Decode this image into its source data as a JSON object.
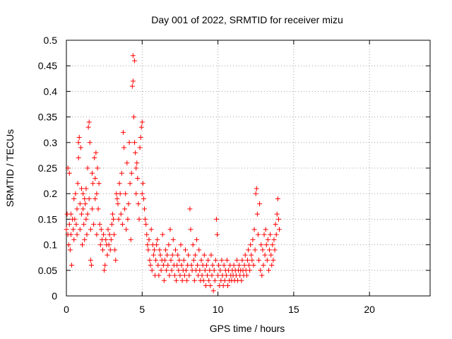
{
  "chart_data": {
    "type": "scatter",
    "title": "Day 001 of 2022, SRMTID for receiver mizu",
    "xlabel": "GPS time / hours",
    "ylabel": "SRMTID / TECUs",
    "xlim": [
      0,
      24
    ],
    "ylim": [
      0,
      0.5
    ],
    "xticks": [
      0,
      5,
      10,
      15,
      20
    ],
    "xtick_labels": [
      "0",
      "5",
      "10",
      "15",
      "20"
    ],
    "yticks": [
      0,
      0.05,
      0.1,
      0.15,
      0.2,
      0.25,
      0.3,
      0.35,
      0.4,
      0.45,
      0.5
    ],
    "ytick_labels": [
      "0",
      "0.05",
      "0.1",
      "0.15",
      "0.2",
      "0.25",
      "0.3",
      "0.35",
      "0.4",
      "0.45",
      "0.5"
    ],
    "grid": true,
    "marker": "+",
    "color": "#ff0000",
    "series": [
      {
        "name": "SRMTID",
        "points": [
          [
            0.0,
            0.13
          ],
          [
            0.05,
            0.16
          ],
          [
            0.1,
            0.25
          ],
          [
            0.1,
            0.12
          ],
          [
            0.15,
            0.1
          ],
          [
            0.2,
            0.14
          ],
          [
            0.2,
            0.24
          ],
          [
            0.25,
            0.09
          ],
          [
            0.3,
            0.12
          ],
          [
            0.3,
            0.16
          ],
          [
            0.35,
            0.06
          ],
          [
            0.4,
            0.15
          ],
          [
            0.45,
            0.13
          ],
          [
            0.5,
            0.11
          ],
          [
            0.5,
            0.19
          ],
          [
            0.55,
            0.15
          ],
          [
            0.6,
            0.2
          ],
          [
            0.65,
            0.14
          ],
          [
            0.7,
            0.17
          ],
          [
            0.7,
            0.12
          ],
          [
            0.75,
            0.22
          ],
          [
            0.8,
            0.27
          ],
          [
            0.8,
            0.3
          ],
          [
            0.85,
            0.31
          ],
          [
            0.9,
            0.18
          ],
          [
            0.9,
            0.13
          ],
          [
            0.95,
            0.29
          ],
          [
            1.0,
            0.21
          ],
          [
            1.0,
            0.16
          ],
          [
            1.05,
            0.1
          ],
          [
            1.1,
            0.2
          ],
          [
            1.1,
            0.17
          ],
          [
            1.15,
            0.14
          ],
          [
            1.2,
            0.19
          ],
          [
            1.2,
            0.11
          ],
          [
            1.25,
            0.18
          ],
          [
            1.3,
            0.15
          ],
          [
            1.3,
            0.21
          ],
          [
            1.35,
            0.12
          ],
          [
            1.4,
            0.25
          ],
          [
            1.4,
            0.16
          ],
          [
            1.45,
            0.33
          ],
          [
            1.5,
            0.34
          ],
          [
            1.5,
            0.19
          ],
          [
            1.55,
            0.3
          ],
          [
            1.6,
            0.13
          ],
          [
            1.6,
            0.07
          ],
          [
            1.65,
            0.06
          ],
          [
            1.7,
            0.24
          ],
          [
            1.7,
            0.17
          ],
          [
            1.75,
            0.22
          ],
          [
            1.8,
            0.14
          ],
          [
            1.85,
            0.27
          ],
          [
            1.9,
            0.23
          ],
          [
            1.9,
            0.19
          ],
          [
            1.95,
            0.28
          ],
          [
            2.0,
            0.2
          ],
          [
            2.0,
            0.12
          ],
          [
            2.05,
            0.25
          ],
          [
            2.1,
            0.17
          ],
          [
            2.15,
            0.22
          ],
          [
            2.2,
            0.14
          ],
          [
            2.25,
            0.1
          ],
          [
            2.3,
            0.13
          ],
          [
            2.35,
            0.11
          ],
          [
            2.4,
            0.09
          ],
          [
            2.45,
            0.12
          ],
          [
            2.5,
            0.05
          ],
          [
            2.55,
            0.06
          ],
          [
            2.6,
            0.11
          ],
          [
            2.65,
            0.1
          ],
          [
            2.7,
            0.08
          ],
          [
            2.75,
            0.13
          ],
          [
            2.8,
            0.1
          ],
          [
            2.85,
            0.12
          ],
          [
            2.9,
            0.09
          ],
          [
            2.95,
            0.11
          ],
          [
            3.0,
            0.14
          ],
          [
            3.05,
            0.16
          ],
          [
            3.1,
            0.15
          ],
          [
            3.15,
            0.12
          ],
          [
            3.2,
            0.09
          ],
          [
            3.25,
            0.07
          ],
          [
            3.3,
            0.2
          ],
          [
            3.35,
            0.19
          ],
          [
            3.4,
            0.18
          ],
          [
            3.45,
            0.15
          ],
          [
            3.5,
            0.22
          ],
          [
            3.55,
            0.2
          ],
          [
            3.6,
            0.16
          ],
          [
            3.65,
            0.24
          ],
          [
            3.7,
            0.14
          ],
          [
            3.75,
            0.32
          ],
          [
            3.8,
            0.29
          ],
          [
            3.85,
            0.17
          ],
          [
            3.9,
            0.2
          ],
          [
            3.95,
            0.13
          ],
          [
            4.0,
            0.26
          ],
          [
            4.05,
            0.15
          ],
          [
            4.1,
            0.18
          ],
          [
            4.15,
            0.3
          ],
          [
            4.2,
            0.22
          ],
          [
            4.25,
            0.11
          ],
          [
            4.3,
            0.24
          ],
          [
            4.35,
            0.41
          ],
          [
            4.4,
            0.47
          ],
          [
            4.4,
            0.42
          ],
          [
            4.45,
            0.35
          ],
          [
            4.5,
            0.46
          ],
          [
            4.5,
            0.3
          ],
          [
            4.55,
            0.28
          ],
          [
            4.6,
            0.25
          ],
          [
            4.6,
            0.2
          ],
          [
            4.65,
            0.26
          ],
          [
            4.7,
            0.23
          ],
          [
            4.75,
            0.18
          ],
          [
            4.8,
            0.15
          ],
          [
            4.85,
            0.29
          ],
          [
            4.9,
            0.31
          ],
          [
            4.95,
            0.33
          ],
          [
            5.0,
            0.34
          ],
          [
            5.0,
            0.2
          ],
          [
            5.05,
            0.22
          ],
          [
            5.1,
            0.19
          ],
          [
            5.15,
            0.17
          ],
          [
            5.2,
            0.15
          ],
          [
            5.25,
            0.14
          ],
          [
            5.3,
            0.12
          ],
          [
            5.35,
            0.1
          ],
          [
            5.4,
            0.09
          ],
          [
            5.45,
            0.11
          ],
          [
            5.5,
            0.07
          ],
          [
            5.55,
            0.06
          ],
          [
            5.6,
            0.13
          ],
          [
            5.65,
            0.05
          ],
          [
            5.7,
            0.1
          ],
          [
            5.75,
            0.08
          ],
          [
            5.8,
            0.09
          ],
          [
            5.85,
            0.04
          ],
          [
            5.9,
            0.07
          ],
          [
            5.95,
            0.1
          ],
          [
            6.0,
            0.11
          ],
          [
            6.05,
            0.06
          ],
          [
            6.1,
            0.04
          ],
          [
            6.15,
            0.09
          ],
          [
            6.2,
            0.08
          ],
          [
            6.25,
            0.05
          ],
          [
            6.3,
            0.07
          ],
          [
            6.35,
            0.12
          ],
          [
            6.4,
            0.06
          ],
          [
            6.45,
            0.03
          ],
          [
            6.5,
            0.07
          ],
          [
            6.55,
            0.09
          ],
          [
            6.6,
            0.05
          ],
          [
            6.65,
            0.08
          ],
          [
            6.7,
            0.06
          ],
          [
            6.75,
            0.1
          ],
          [
            6.8,
            0.04
          ],
          [
            6.85,
            0.13
          ],
          [
            6.9,
            0.07
          ],
          [
            6.95,
            0.05
          ],
          [
            7.0,
            0.08
          ],
          [
            7.05,
            0.11
          ],
          [
            7.1,
            0.06
          ],
          [
            7.15,
            0.04
          ],
          [
            7.2,
            0.09
          ],
          [
            7.25,
            0.03
          ],
          [
            7.3,
            0.06
          ],
          [
            7.35,
            0.08
          ],
          [
            7.4,
            0.05
          ],
          [
            7.45,
            0.07
          ],
          [
            7.5,
            0.04
          ],
          [
            7.55,
            0.1
          ],
          [
            7.6,
            0.06
          ],
          [
            7.65,
            0.03
          ],
          [
            7.7,
            0.05
          ],
          [
            7.75,
            0.07
          ],
          [
            7.8,
            0.04
          ],
          [
            7.85,
            0.09
          ],
          [
            7.9,
            0.05
          ],
          [
            7.95,
            0.03
          ],
          [
            8.0,
            0.06
          ],
          [
            8.05,
            0.08
          ],
          [
            8.1,
            0.04
          ],
          [
            8.15,
            0.17
          ],
          [
            8.2,
            0.13
          ],
          [
            8.25,
            0.06
          ],
          [
            8.3,
            0.05
          ],
          [
            8.35,
            0.1
          ],
          [
            8.4,
            0.07
          ],
          [
            8.45,
            0.03
          ],
          [
            8.5,
            0.08
          ],
          [
            8.55,
            0.05
          ],
          [
            8.6,
            0.11
          ],
          [
            8.65,
            0.06
          ],
          [
            8.7,
            0.04
          ],
          [
            8.75,
            0.09
          ],
          [
            8.8,
            0.05
          ],
          [
            8.85,
            0.03
          ],
          [
            8.9,
            0.07
          ],
          [
            8.95,
            0.04
          ],
          [
            9.0,
            0.06
          ],
          [
            9.05,
            0.03
          ],
          [
            9.1,
            0.08
          ],
          [
            9.15,
            0.05
          ],
          [
            9.2,
            0.02
          ],
          [
            9.25,
            0.06
          ],
          [
            9.3,
            0.04
          ],
          [
            9.35,
            0.07
          ],
          [
            9.4,
            0.03
          ],
          [
            9.45,
            0.05
          ],
          [
            9.5,
            0.02
          ],
          [
            9.55,
            0.08
          ],
          [
            9.6,
            0.04
          ],
          [
            9.65,
            0.06
          ],
          [
            9.7,
            0.01
          ],
          [
            9.75,
            0.05
          ],
          [
            9.8,
            0.03
          ],
          [
            9.85,
            0.07
          ],
          [
            9.9,
            0.15
          ],
          [
            9.95,
            0.12
          ],
          [
            10.0,
            0.04
          ],
          [
            10.05,
            0.06
          ],
          [
            10.1,
            0.02
          ],
          [
            10.15,
            0.05
          ],
          [
            10.2,
            0.03
          ],
          [
            10.25,
            0.07
          ],
          [
            10.3,
            0.04
          ],
          [
            10.35,
            0.02
          ],
          [
            10.4,
            0.06
          ],
          [
            10.45,
            0.03
          ],
          [
            10.5,
            0.05
          ],
          [
            10.55,
            0.04
          ],
          [
            10.6,
            0.07
          ],
          [
            10.65,
            0.02
          ],
          [
            10.7,
            0.05
          ],
          [
            10.75,
            0.03
          ],
          [
            10.8,
            0.06
          ],
          [
            10.85,
            0.04
          ],
          [
            10.9,
            0.03
          ],
          [
            10.95,
            0.05
          ],
          [
            11.0,
            0.04
          ],
          [
            11.05,
            0.06
          ],
          [
            11.1,
            0.03
          ],
          [
            11.15,
            0.05
          ],
          [
            11.2,
            0.04
          ],
          [
            11.25,
            0.07
          ],
          [
            11.3,
            0.03
          ],
          [
            11.35,
            0.05
          ],
          [
            11.4,
            0.06
          ],
          [
            11.45,
            0.04
          ],
          [
            11.5,
            0.05
          ],
          [
            11.55,
            0.03
          ],
          [
            11.6,
            0.07
          ],
          [
            11.65,
            0.05
          ],
          [
            11.7,
            0.04
          ],
          [
            11.75,
            0.06
          ],
          [
            11.8,
            0.08
          ],
          [
            11.85,
            0.05
          ],
          [
            11.9,
            0.04
          ],
          [
            11.95,
            0.07
          ],
          [
            12.0,
            0.09
          ],
          [
            12.05,
            0.06
          ],
          [
            12.1,
            0.05
          ],
          [
            12.15,
            0.1
          ],
          [
            12.2,
            0.08
          ],
          [
            12.25,
            0.07
          ],
          [
            12.3,
            0.11
          ],
          [
            12.35,
            0.06
          ],
          [
            12.4,
            0.13
          ],
          [
            12.45,
            0.09
          ],
          [
            12.5,
            0.2
          ],
          [
            12.55,
            0.21
          ],
          [
            12.6,
            0.16
          ],
          [
            12.65,
            0.12
          ],
          [
            12.7,
            0.07
          ],
          [
            12.75,
            0.18
          ],
          [
            12.8,
            0.05
          ],
          [
            12.85,
            0.1
          ],
          [
            12.9,
            0.04
          ],
          [
            12.95,
            0.09
          ],
          [
            13.0,
            0.06
          ],
          [
            13.05,
            0.12
          ],
          [
            13.1,
            0.08
          ],
          [
            13.15,
            0.13
          ],
          [
            13.2,
            0.1
          ],
          [
            13.25,
            0.07
          ],
          [
            13.3,
            0.11
          ],
          [
            13.35,
            0.05
          ],
          [
            13.4,
            0.09
          ],
          [
            13.45,
            0.12
          ],
          [
            13.5,
            0.08
          ],
          [
            13.55,
            0.06
          ],
          [
            13.6,
            0.1
          ],
          [
            13.65,
            0.07
          ],
          [
            13.7,
            0.11
          ],
          [
            13.75,
            0.09
          ],
          [
            13.8,
            0.14
          ],
          [
            13.85,
            0.12
          ],
          [
            13.9,
            0.16
          ],
          [
            13.95,
            0.19
          ],
          [
            14.0,
            0.15
          ],
          [
            14.05,
            0.13
          ]
        ]
      }
    ]
  }
}
